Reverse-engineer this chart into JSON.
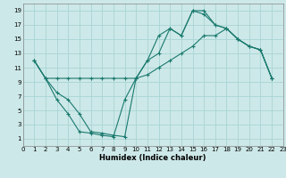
{
  "xlabel": "Humidex (Indice chaleur)",
  "bg_color": "#cde8e8",
  "grid_color": "#a8d4d4",
  "line_color": "#1a7a6e",
  "xlim": [
    0,
    23
  ],
  "ylim": [
    0,
    20
  ],
  "xticks": [
    0,
    1,
    2,
    3,
    4,
    5,
    6,
    7,
    8,
    9,
    10,
    11,
    12,
    13,
    14,
    15,
    16,
    17,
    18,
    19,
    20,
    21,
    22,
    23
  ],
  "yticks": [
    1,
    3,
    5,
    7,
    9,
    11,
    13,
    15,
    17,
    19
  ],
  "line1_x": [
    1,
    2,
    3,
    4,
    5,
    6,
    7,
    8,
    9,
    10,
    11,
    12,
    13,
    14,
    15,
    16,
    17,
    18,
    19,
    20,
    21,
    22
  ],
  "line1_y": [
    12,
    9.5,
    9.5,
    9.5,
    9.5,
    9.5,
    9.5,
    9.5,
    9.5,
    9.5,
    10,
    11,
    12,
    13,
    14,
    15.5,
    15.5,
    16.5,
    15,
    14,
    13.5,
    9.5
  ],
  "line2_x": [
    1,
    2,
    3,
    4,
    5,
    6,
    7,
    8,
    9,
    10,
    11,
    12,
    13,
    14,
    15,
    16,
    17,
    18,
    19,
    20,
    21,
    22
  ],
  "line2_y": [
    12,
    9.5,
    7.5,
    6.5,
    4.5,
    2.0,
    1.8,
    1.5,
    1.3,
    9.5,
    12,
    15.5,
    16.5,
    15.5,
    19,
    19,
    17,
    16.5,
    15,
    14,
    13.5,
    9.5
  ],
  "line3_x": [
    1,
    2,
    3,
    4,
    5,
    6,
    7,
    8,
    9,
    10,
    11,
    12,
    13,
    14,
    15,
    16,
    17,
    18,
    19,
    20,
    21,
    22
  ],
  "line3_y": [
    12,
    9.5,
    6.5,
    4.5,
    2.0,
    1.8,
    1.5,
    1.3,
    6.5,
    9.5,
    12,
    13,
    16.5,
    15.5,
    19,
    18.5,
    17,
    16.5,
    15,
    14,
    13.5,
    9.5
  ]
}
